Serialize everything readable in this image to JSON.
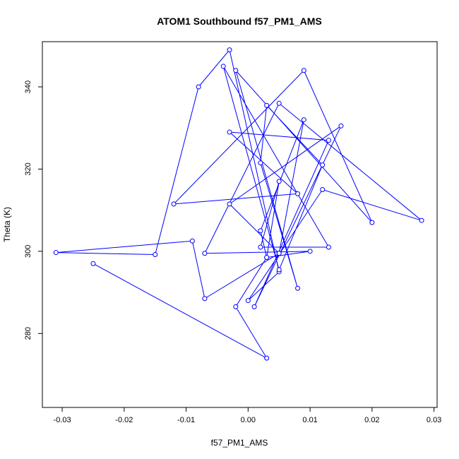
{
  "chart_data": {
    "type": "line",
    "title": "ATOM1 Southbound f57_PM1_AMS",
    "xlabel": "f57_PM1_AMS",
    "ylabel": "Theta (K)",
    "xlim": [
      -0.0332,
      0.0305
    ],
    "ylim": [
      262,
      351
    ],
    "x_ticks": [
      -0.03,
      -0.02,
      -0.01,
      0.0,
      0.01,
      0.02,
      0.03
    ],
    "x_tick_labels": [
      "-0.03",
      "-0.02",
      "-0.01",
      "0.00",
      "0.01",
      "0.02",
      "0.03"
    ],
    "y_ticks": [
      280,
      300,
      320,
      340
    ],
    "y_tick_labels": [
      "280",
      "300",
      "320",
      "340"
    ],
    "grid": false,
    "line_color": "#0000ff",
    "marker": "open-circle",
    "series": [
      {
        "x": [
          -0.025,
          0.003,
          -0.002,
          0.003,
          0.002,
          0.009,
          0.005,
          -0.007,
          -0.009,
          -0.031,
          -0.015,
          -0.008,
          -0.003,
          0.005,
          0.0,
          0.012,
          0.028,
          0.005,
          -0.007,
          0.01,
          0.003,
          0.005,
          0.002,
          0.013,
          -0.004,
          0.005,
          0.012,
          0.003,
          0.002,
          0.008,
          -0.002,
          0.02,
          0.009,
          -0.012,
          0.008,
          -0.003,
          0.013,
          0.001,
          0.015,
          -0.003,
          0.005
        ],
        "y": [
          297,
          274,
          286.5,
          298.5,
          305,
          332,
          299.5,
          288.5,
          302.5,
          299.7,
          299.2,
          340,
          349,
          295,
          288,
          315,
          307.5,
          336,
          299.5,
          300,
          298.5,
          317,
          301,
          301,
          345,
          295.5,
          321,
          335.5,
          321.5,
          291,
          344,
          307,
          344,
          311.5,
          314,
          329,
          327,
          286.5,
          330.5,
          311.5,
          299.5
        ]
      }
    ]
  }
}
